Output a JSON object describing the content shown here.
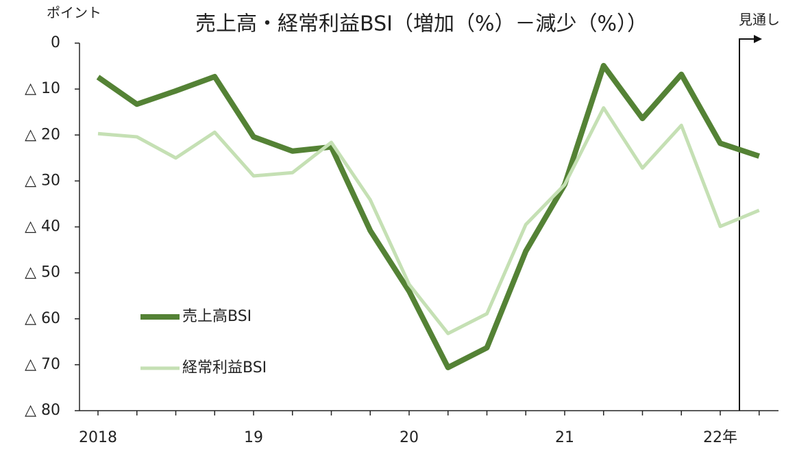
{
  "chart_data": {
    "type": "line",
    "title": "売上高・経常利益BSI（増加（%）－減少（%））",
    "y_axis_label": "ポイント",
    "annotation": "見通し",
    "categories": [
      "2018",
      null,
      null,
      null,
      "19",
      null,
      null,
      null,
      "20",
      null,
      null,
      null,
      "21",
      null,
      null,
      null,
      "22年",
      null
    ],
    "series": [
      {
        "name": "売上高BSI",
        "color": "#548235",
        "values": [
          -7.4,
          -13.3,
          -10.4,
          -7.3,
          -20.4,
          -23.5,
          -22.6,
          -40.8,
          -54,
          -70.6,
          -66.3,
          -45.3,
          -30.8,
          -4.9,
          -16.4,
          -6.8,
          -21.8,
          -24.6
        ]
      },
      {
        "name": "経常利益BSI",
        "color": "#c5e0b4",
        "values": [
          -19.7,
          -20.4,
          -25,
          -19.4,
          -28.9,
          -28.2,
          -21.6,
          -34.1,
          -52.5,
          -63.2,
          -58.9,
          -39.5,
          -30.8,
          -14.1,
          -27.2,
          -17.9,
          -39.9,
          -36.4
        ]
      }
    ],
    "ylim": [
      -80,
      0
    ],
    "yticks": [
      0,
      {
        "value": -10,
        "label": "△ 10"
      },
      {
        "value": -20,
        "label": "△ 20"
      },
      {
        "value": -30,
        "label": "△ 30"
      },
      {
        "value": -40,
        "label": "△ 40"
      },
      {
        "value": -50,
        "label": "△ 50"
      },
      {
        "value": -60,
        "label": "△ 60"
      },
      {
        "value": -70,
        "label": "△ 70"
      },
      {
        "value": -80,
        "label": "△ 80"
      }
    ],
    "grid": false
  }
}
